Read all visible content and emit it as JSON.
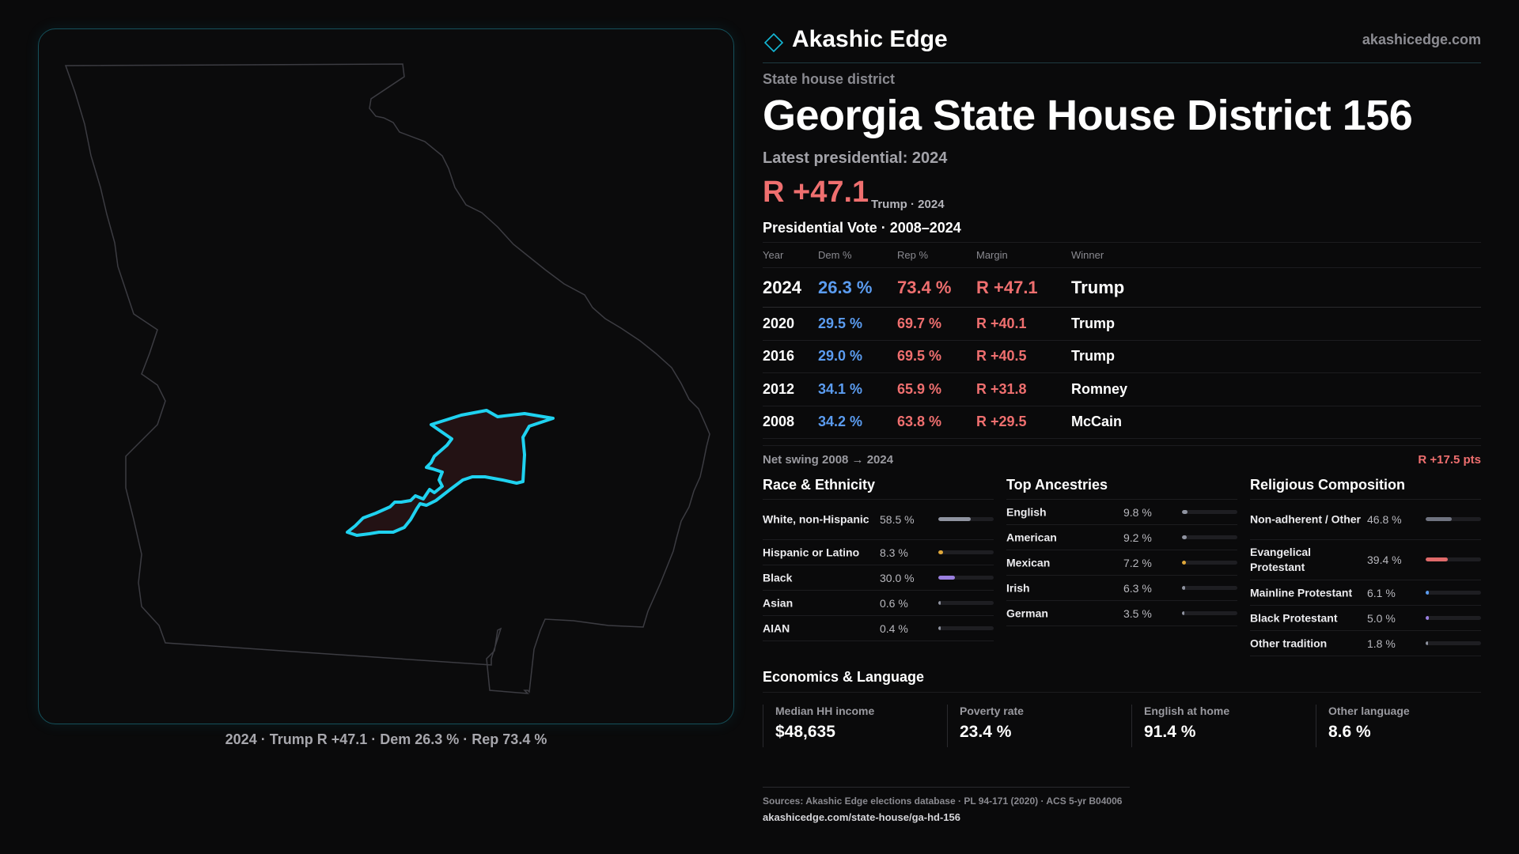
{
  "map": {
    "caption": "2024 · Trump R +47.1 · Dem 26.3 % · Rep 73.4 %",
    "state_outline_color": "#3c3c42",
    "district_stroke_color": "#1fd2f0",
    "district_fill_color": "#231214"
  },
  "brand": {
    "name": "Akashic Edge",
    "site": "akashicedge.com",
    "logo_icon": "diamond-outline-icon",
    "accent": "#14b8d6"
  },
  "header": {
    "kicker": "State house district",
    "title": "Georgia State House District 156",
    "latest": "Latest presidential: 2024",
    "margin": "R +47.1",
    "margin_sub": "Trump · 2024"
  },
  "votes": {
    "title": "Presidential Vote · 2008–2024",
    "columns": [
      "Year",
      "Dem %",
      "Rep %",
      "Margin",
      "Winner"
    ],
    "rows": [
      {
        "year": "2024",
        "dem": "26.3 %",
        "rep": "73.4 %",
        "margin": "R +47.1",
        "winner": "Trump"
      },
      {
        "year": "2020",
        "dem": "29.5 %",
        "rep": "69.7 %",
        "margin": "R +40.1",
        "winner": "Trump"
      },
      {
        "year": "2016",
        "dem": "29.0 %",
        "rep": "69.5 %",
        "margin": "R +40.5",
        "winner": "Trump"
      },
      {
        "year": "2012",
        "dem": "34.1 %",
        "rep": "65.9 %",
        "margin": "R +31.8",
        "winner": "Romney"
      },
      {
        "year": "2008",
        "dem": "34.2 %",
        "rep": "63.8 %",
        "margin": "R +29.5",
        "winner": "McCain"
      }
    ],
    "colors": {
      "dem": "#5b9cf0",
      "rep": "#ef6f6f"
    }
  },
  "swing": {
    "label": "Net swing 2008 → 2024",
    "value": "R +17.5 pts"
  },
  "race": {
    "title": "Race & Ethnicity",
    "items": [
      {
        "label": "White, non-Hispanic",
        "pct": "58.5 %",
        "value": 58.5,
        "color": "#8f93a0"
      },
      {
        "label": "Hispanic or Latino",
        "pct": "8.3 %",
        "value": 8.3,
        "color": "#e0a83a"
      },
      {
        "label": "Black",
        "pct": "30.0 %",
        "value": 30.0,
        "color": "#9a7fe0"
      },
      {
        "label": "Asian",
        "pct": "0.6 %",
        "value": 0.6,
        "color": "#8f93a0"
      },
      {
        "label": "AIAN",
        "pct": "0.4 %",
        "value": 0.4,
        "color": "#8f93a0"
      }
    ]
  },
  "ancestry": {
    "title": "Top Ancestries",
    "items": [
      {
        "label": "English",
        "pct": "9.8 %",
        "value": 9.8,
        "color": "#8f93a0"
      },
      {
        "label": "American",
        "pct": "9.2 %",
        "value": 9.2,
        "color": "#8f93a0"
      },
      {
        "label": "Mexican",
        "pct": "7.2 %",
        "value": 7.2,
        "color": "#e0a83a"
      },
      {
        "label": "Irish",
        "pct": "6.3 %",
        "value": 6.3,
        "color": "#8f93a0"
      },
      {
        "label": "German",
        "pct": "3.5 %",
        "value": 3.5,
        "color": "#8f93a0"
      }
    ]
  },
  "religion": {
    "title": "Religious Composition",
    "items": [
      {
        "label": "Non-adherent / Other",
        "pct": "46.8 %",
        "value": 46.8,
        "color": "#6f7380"
      },
      {
        "label": "Evangelical Protestant",
        "pct": "39.4 %",
        "value": 39.4,
        "color": "#e06a6a"
      },
      {
        "label": "Mainline Protestant",
        "pct": "6.1 %",
        "value": 6.1,
        "color": "#5b9cf0"
      },
      {
        "label": "Black Protestant",
        "pct": "5.0 %",
        "value": 5.0,
        "color": "#9a7fe0"
      },
      {
        "label": "Other tradition",
        "pct": "1.8 %",
        "value": 1.8,
        "color": "#8f93a0"
      }
    ]
  },
  "economics": {
    "title": "Economics & Language",
    "items": [
      {
        "label": "Median HH income",
        "value": "$48,635"
      },
      {
        "label": "Poverty rate",
        "value": "23.4 %"
      },
      {
        "label": "English at home",
        "value": "91.4 %"
      },
      {
        "label": "Other language",
        "value": "8.6 %"
      }
    ]
  },
  "footer": {
    "sources": "Sources: Akashic Edge elections database · PL 94-171 (2020) · ACS 5-yr B04006",
    "permalink": "akashicedge.com/state-house/ga-hd-156"
  }
}
